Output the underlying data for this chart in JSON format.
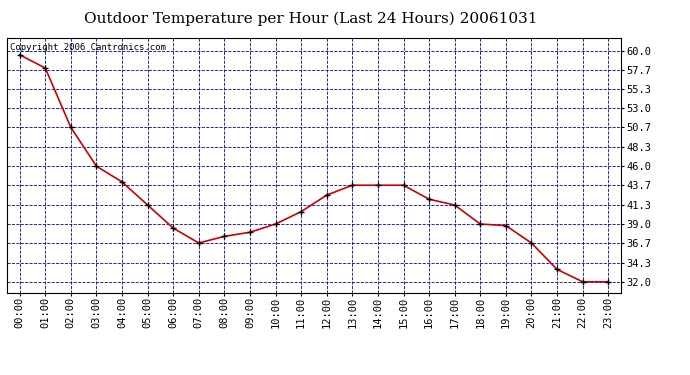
{
  "title": "Outdoor Temperature per Hour (Last 24 Hours) 20061031",
  "copyright_text": "Copyright 2006 Cantronics.com",
  "hours": [
    "00:00",
    "01:00",
    "02:00",
    "03:00",
    "04:00",
    "05:00",
    "06:00",
    "07:00",
    "08:00",
    "09:00",
    "10:00",
    "11:00",
    "12:00",
    "13:00",
    "14:00",
    "15:00",
    "16:00",
    "17:00",
    "18:00",
    "19:00",
    "20:00",
    "21:00",
    "22:00",
    "23:00"
  ],
  "temperatures": [
    59.5,
    57.9,
    50.7,
    46.0,
    44.1,
    41.3,
    38.5,
    36.7,
    37.5,
    38.0,
    39.0,
    40.5,
    42.5,
    43.7,
    43.7,
    43.7,
    42.0,
    41.3,
    39.0,
    38.8,
    36.7,
    33.5,
    32.0,
    32.0
  ],
  "ylim_min": 30.7,
  "ylim_max": 61.6,
  "yticks": [
    32.0,
    34.3,
    36.7,
    39.0,
    41.3,
    43.7,
    46.0,
    48.3,
    50.7,
    53.0,
    55.3,
    57.7,
    60.0
  ],
  "line_color": "#cc0000",
  "marker_color": "#000000",
  "bg_color": "#ffffff",
  "plot_bg_color": "#ffffff",
  "grid_color": "#0000bb",
  "title_fontsize": 11,
  "tick_fontsize": 7.5,
  "copyright_fontsize": 6.5
}
